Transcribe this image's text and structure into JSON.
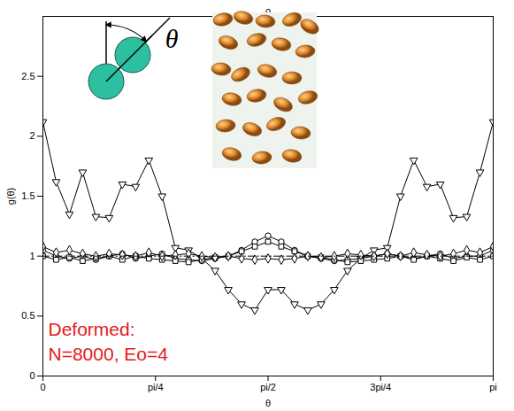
{
  "chart_data": {
    "type": "line",
    "title": "θ",
    "x_label": "θ",
    "y_label": "g(θ)",
    "x": [
      0,
      0.0924,
      0.1848,
      0.2772,
      0.3696,
      0.462,
      0.5544,
      0.6468,
      0.7392,
      0.8316,
      0.924,
      1.0164,
      1.1088,
      1.2012,
      1.2936,
      1.386,
      1.4784,
      1.5708,
      1.6632,
      1.7556,
      1.848,
      1.9404,
      2.0328,
      2.1252,
      2.2176,
      2.31,
      2.4024,
      2.4948,
      2.5872,
      2.6796,
      2.772,
      2.8644,
      2.9568,
      3.0492,
      3.1416
    ],
    "series": [
      {
        "color": "#000000",
        "marker": "triangle-down",
        "line_style": "solid",
        "values": [
          2.12,
          1.62,
          1.35,
          1.7,
          1.33,
          1.32,
          1.6,
          1.58,
          1.8,
          1.5,
          1.07,
          1.05,
          0.98,
          0.88,
          0.72,
          0.6,
          0.55,
          0.72,
          0.72,
          0.6,
          0.55,
          0.6,
          0.72,
          0.88,
          0.98,
          1.05,
          1.07,
          1.5,
          1.8,
          1.58,
          1.6,
          1.32,
          1.33,
          1.7,
          2.12
        ]
      },
      {
        "color": "#000000",
        "marker": "circle",
        "line_style": "solid",
        "values": [
          1.05,
          1.0,
          0.98,
          1.0,
          0.97,
          1.0,
          1.02,
          0.98,
          1.0,
          1.02,
          0.98,
          0.97,
          0.96,
          0.98,
          1.0,
          1.05,
          1.12,
          1.17,
          1.12,
          1.05,
          1.0,
          0.98,
          0.96,
          0.97,
          0.98,
          1.0,
          1.02,
          1.0,
          0.98,
          1.0,
          1.02,
          0.98,
          1.0,
          1.0,
          1.05
        ]
      },
      {
        "color": "#000000",
        "marker": "square",
        "line_style": "solid",
        "values": [
          1.0,
          0.97,
          0.99,
          0.96,
          0.98,
          1.0,
          0.97,
          1.0,
          0.98,
          0.97,
          0.96,
          0.95,
          0.97,
          0.99,
          1.0,
          1.04,
          1.08,
          1.12,
          1.08,
          1.04,
          1.0,
          0.99,
          0.97,
          0.95,
          0.96,
          0.97,
          0.98,
          1.0,
          0.97,
          1.0,
          0.98,
          0.96,
          0.99,
          0.97,
          1.0
        ]
      },
      {
        "color": "#000000",
        "marker": "diamond",
        "line_style": "solid",
        "values": [
          1.08,
          1.03,
          1.05,
          1.02,
          1.0,
          1.02,
          1.01,
          1.0,
          1.03,
          1.0,
          1.01,
          1.02,
          1.0,
          0.99,
          1.0,
          0.98,
          0.97,
          0.98,
          0.97,
          0.98,
          1.0,
          0.99,
          1.0,
          1.02,
          1.01,
          1.0,
          1.02,
          1.0,
          1.03,
          1.01,
          1.0,
          1.02,
          1.05,
          1.03,
          1.08
        ]
      },
      {
        "color": "#000000",
        "marker": "none",
        "line_style": "dashdot",
        "values": [
          1,
          1,
          1,
          1,
          1,
          1,
          1,
          1,
          1,
          1,
          1,
          1,
          1,
          1,
          1,
          1,
          1,
          1,
          1,
          1,
          1,
          1,
          1,
          1,
          1,
          1,
          1,
          1,
          1,
          1,
          1,
          1,
          1,
          1,
          1
        ]
      }
    ],
    "xlim": [
      0,
      3.1416
    ],
    "xticks": [
      0,
      {
        "value": 0.7854,
        "label": "pi/4"
      },
      {
        "value": 1.5708,
        "label": "pi/2"
      },
      {
        "value": 2.3562,
        "label": "3pi/4"
      },
      {
        "value": 3.1416,
        "label": "pi"
      }
    ],
    "ylim": [
      0,
      3
    ],
    "yticks": [
      0,
      0.5,
      1,
      1.5,
      2,
      2.5
    ],
    "grid": false,
    "annotations": [
      "Deformed:",
      "N=8000, Eo=4"
    ],
    "inset_label": "θ"
  }
}
